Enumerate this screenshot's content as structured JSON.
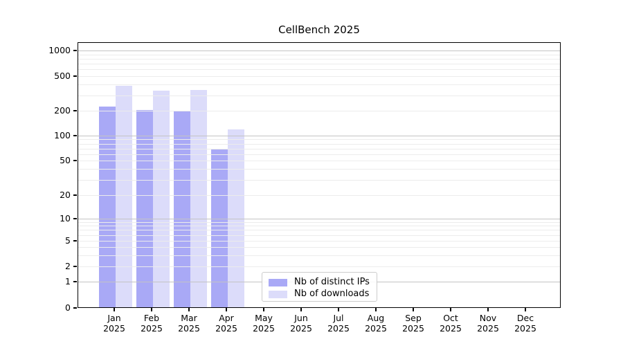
{
  "chart_data": {
    "type": "bar",
    "title": "CellBench 2025",
    "categories": [
      "Jan 2025",
      "Feb 2025",
      "Mar 2025",
      "Apr 2025",
      "May 2025",
      "Jun 2025",
      "Jul 2025",
      "Aug 2025",
      "Sep 2025",
      "Oct 2025",
      "Nov 2025",
      "Dec 2025"
    ],
    "series": [
      {
        "name": "Nb of distinct IPs",
        "color": "#a9a9f6",
        "values": [
          225,
          205,
          195,
          70,
          null,
          null,
          null,
          null,
          null,
          null,
          null,
          null
        ]
      },
      {
        "name": "Nb of downloads",
        "color": "#dcdcfa",
        "values": [
          390,
          340,
          345,
          120,
          null,
          null,
          null,
          null,
          null,
          null,
          null,
          null
        ]
      }
    ],
    "xlabel": "",
    "ylabel": "",
    "yscale": "symlog",
    "ylim": [
      0,
      1250
    ],
    "yticks": [
      0,
      1,
      2,
      5,
      10,
      20,
      50,
      100,
      200,
      500,
      1000
    ],
    "grid": "horizontal major and minor, drawn over bars",
    "legend_position": "inside plot, lower center",
    "colors": {
      "background": "#ffffff",
      "axis": "#000000",
      "grid_major": "#c3c3c3",
      "grid_minor": "#ececec"
    }
  }
}
